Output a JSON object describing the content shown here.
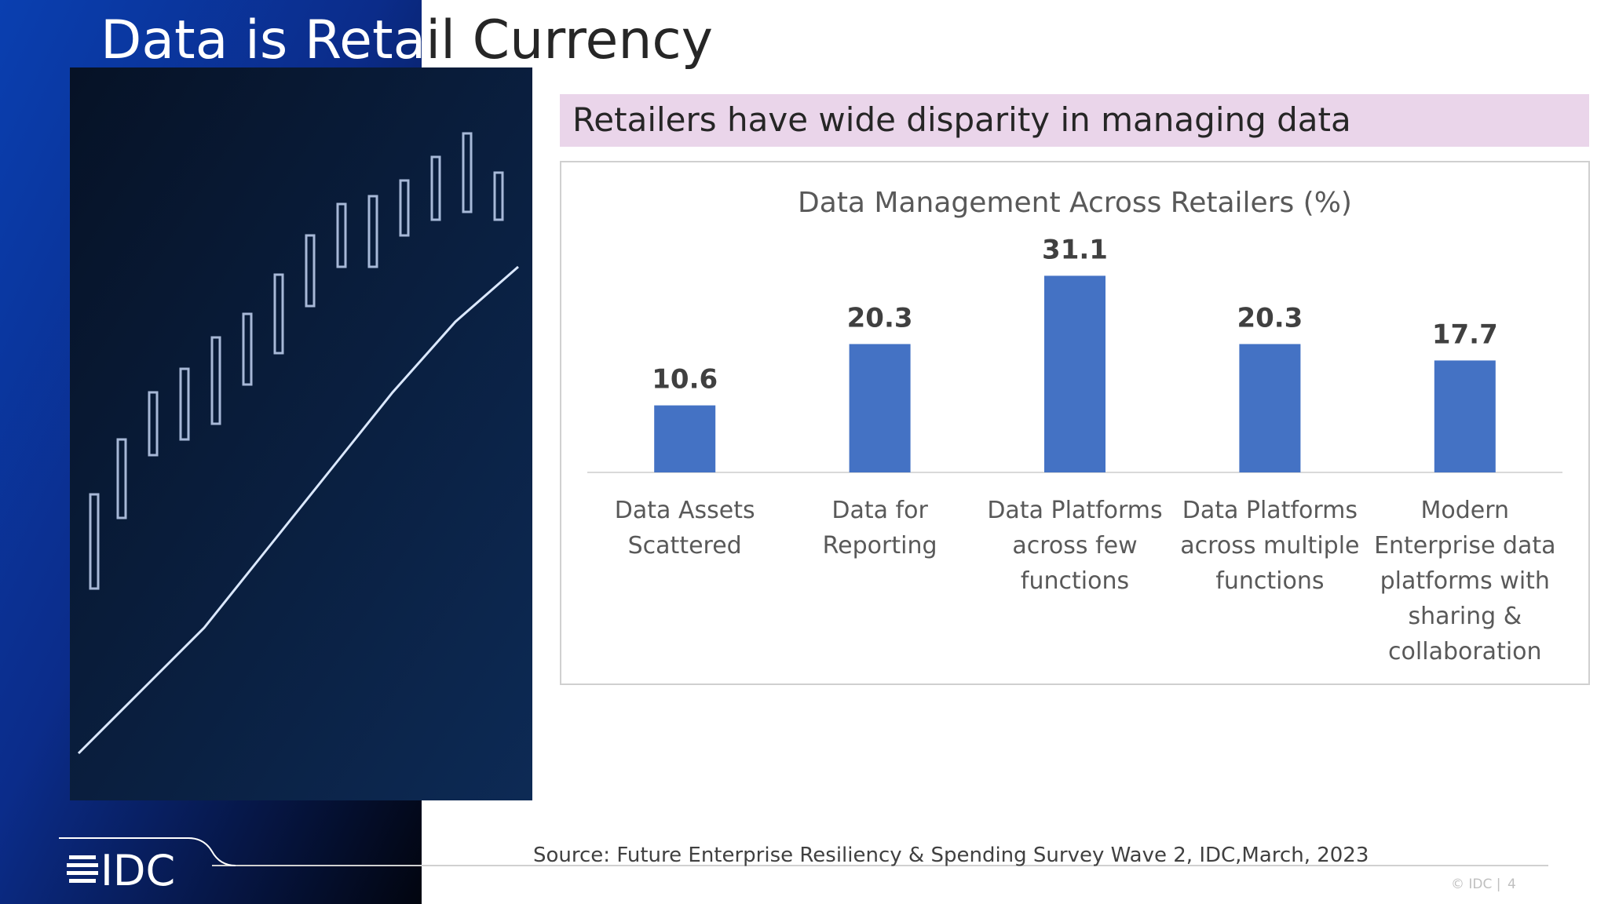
{
  "title": "Data is Retail Currency",
  "subtitle": "Retailers have wide disparity in managing data",
  "chart_data": {
    "type": "bar",
    "title": "Data Management Across Retailers (%)",
    "categories": [
      "Data Assets Scattered",
      "Data for Reporting",
      "Data Platforms across few functions",
      "Data Platforms across multiple functions",
      "Modern Enterprise data platforms with sharing & collaboration"
    ],
    "values": [
      10.6,
      20.3,
      31.1,
      20.3,
      17.7
    ],
    "color": "#4472c4",
    "ylim": [
      0,
      35
    ]
  },
  "source": "Source: Future Enterprise Resiliency & Spending Survey Wave 2, IDC,March, 2023",
  "footer": {
    "logo": "IDC",
    "copyright": "© IDC |",
    "page": "4"
  }
}
